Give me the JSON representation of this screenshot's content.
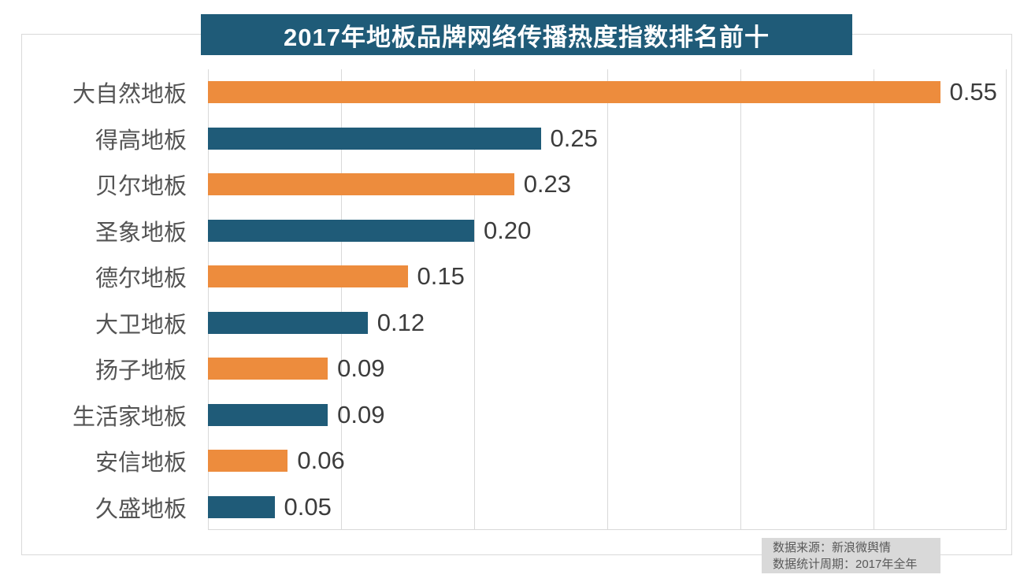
{
  "title": "2017年地板品牌网络传播热度指数排名前十",
  "source": {
    "line1": "数据来源：新浪微舆情",
    "line2": "数据统计周期：2017年全年"
  },
  "colors": {
    "bar_orange": "#ed8c3d",
    "bar_teal": "#1f5b78",
    "title_background": "#1f5b78",
    "title_text": "#ffffff",
    "grid_line": "#d9d9d9",
    "category_text": "#545454",
    "value_text": "#3c3c3c",
    "source_background": "#d9d9d9",
    "source_text": "#595959"
  },
  "chart_data": {
    "type": "bar",
    "orientation": "horizontal",
    "title": "2017年地板品牌网络传播热度指数排名前十",
    "categories": [
      "大自然地板",
      "得高地板",
      "贝尔地板",
      "圣象地板",
      "德尔地板",
      "大卫地板",
      "扬子地板",
      "生活家地板",
      "安信地板",
      "久盛地板"
    ],
    "values": [
      0.55,
      0.25,
      0.23,
      0.2,
      0.15,
      0.12,
      0.09,
      0.09,
      0.06,
      0.05
    ],
    "value_labels": [
      "0.55",
      "0.25",
      "0.23",
      "0.20",
      "0.15",
      "0.12",
      "0.09",
      "0.09",
      "0.06",
      "0.05"
    ],
    "xlabel": "",
    "ylabel": "",
    "xlim": [
      0,
      0.6
    ],
    "grid_step": 0.1,
    "grid": "vertical-only",
    "legend": "none",
    "bar_colors_alternate": [
      "#ed8c3d",
      "#1f5b78"
    ],
    "annotations": [
      "数据来源：新浪微舆情",
      "数据统计周期：2017年全年"
    ]
  }
}
